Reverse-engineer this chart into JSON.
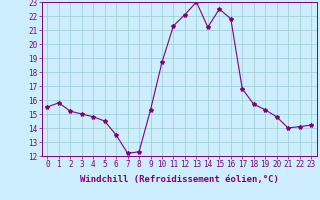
{
  "x": [
    0,
    1,
    2,
    3,
    4,
    5,
    6,
    7,
    8,
    9,
    10,
    11,
    12,
    13,
    14,
    15,
    16,
    17,
    18,
    19,
    20,
    21,
    22,
    23
  ],
  "y": [
    15.5,
    15.8,
    15.2,
    15.0,
    14.8,
    14.5,
    13.5,
    12.2,
    12.3,
    15.3,
    18.7,
    21.3,
    22.1,
    23.0,
    21.2,
    22.5,
    21.8,
    16.8,
    15.7,
    15.3,
    14.8,
    14.0,
    14.1,
    14.2
  ],
  "line_color": "#800080",
  "marker": "*",
  "marker_size": 3,
  "bg_color": "#cceeff",
  "grid_color": "#99cccc",
  "xlabel": "Windchill (Refroidissement éolien,°C)",
  "ylim": [
    12,
    23
  ],
  "xlim": [
    -0.5,
    23.5
  ],
  "yticks": [
    12,
    13,
    14,
    15,
    16,
    17,
    18,
    19,
    20,
    21,
    22,
    23
  ],
  "xticks": [
    0,
    1,
    2,
    3,
    4,
    5,
    6,
    7,
    8,
    9,
    10,
    11,
    12,
    13,
    14,
    15,
    16,
    17,
    18,
    19,
    20,
    21,
    22,
    23
  ],
  "tick_label_size": 5.5,
  "xlabel_size": 6.5,
  "line_width": 0.8
}
